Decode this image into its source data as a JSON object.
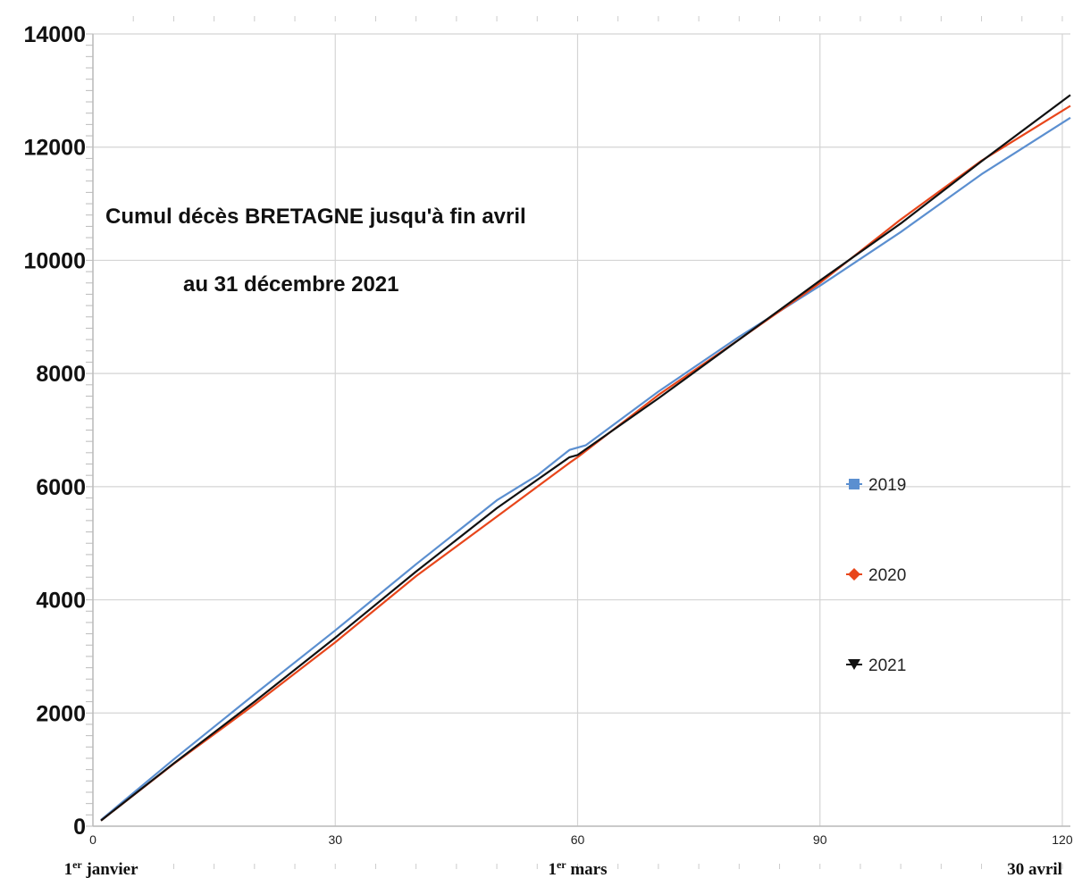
{
  "chart_data": {
    "type": "line",
    "title": "Cumul décès BRETAGNE jusqu'à fin avril",
    "subtitle": "au 31 décembre 2021",
    "xlabel": "",
    "ylabel": "",
    "xlim": [
      0,
      121
    ],
    "ylim": [
      0,
      14000
    ],
    "x_ticks": [
      0,
      30,
      60,
      90,
      120
    ],
    "y_ticks": [
      0,
      2000,
      4000,
      6000,
      8000,
      10000,
      12000,
      14000
    ],
    "x_captions": [
      {
        "x": 1,
        "text": "1er janvier"
      },
      {
        "x": 60,
        "text": "1er mars"
      },
      {
        "x": 120,
        "text": "30 avril"
      }
    ],
    "grid": true,
    "legend_position": "right",
    "series": [
      {
        "name": "2019",
        "color": "#5b8fd0",
        "marker": "square",
        "points": [
          [
            1,
            110
          ],
          [
            10,
            1180
          ],
          [
            20,
            2330
          ],
          [
            30,
            3460
          ],
          [
            40,
            4630
          ],
          [
            50,
            5760
          ],
          [
            55,
            6200
          ],
          [
            59,
            6650
          ],
          [
            61,
            6730
          ],
          [
            70,
            7680
          ],
          [
            80,
            8650
          ],
          [
            90,
            9550
          ],
          [
            100,
            10500
          ],
          [
            110,
            11520
          ],
          [
            121,
            12520
          ]
        ]
      },
      {
        "name": "2020",
        "color": "#e8461b",
        "marker": "diamond",
        "points": [
          [
            1,
            100
          ],
          [
            10,
            1100
          ],
          [
            20,
            2150
          ],
          [
            30,
            3250
          ],
          [
            40,
            4420
          ],
          [
            50,
            5470
          ],
          [
            59,
            6420
          ],
          [
            60,
            6520
          ],
          [
            70,
            7620
          ],
          [
            80,
            8600
          ],
          [
            90,
            9600
          ],
          [
            100,
            10720
          ],
          [
            110,
            11760
          ],
          [
            121,
            12730
          ]
        ]
      },
      {
        "name": "2021",
        "color": "#111111",
        "marker": "triangle-down",
        "points": [
          [
            1,
            100
          ],
          [
            10,
            1110
          ],
          [
            20,
            2200
          ],
          [
            30,
            3330
          ],
          [
            40,
            4500
          ],
          [
            50,
            5620
          ],
          [
            59,
            6520
          ],
          [
            60,
            6560
          ],
          [
            70,
            7560
          ],
          [
            80,
            8600
          ],
          [
            90,
            9640
          ],
          [
            100,
            10650
          ],
          [
            110,
            11750
          ],
          [
            121,
            12920
          ]
        ]
      }
    ]
  }
}
